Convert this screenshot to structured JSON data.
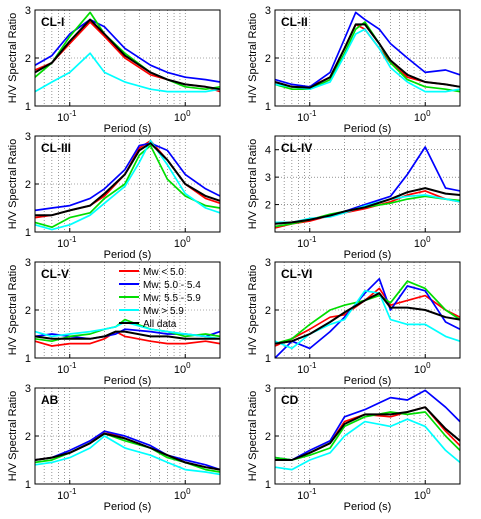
{
  "figure": {
    "series": [
      {
        "name": "Mw < 5.0",
        "color": "#ff0000"
      },
      {
        "name": "Mw: 5.0 - 5.4",
        "color": "#0000ff"
      },
      {
        "name": "Mw: 5.5 - 5.9",
        "color": "#00dd00"
      },
      {
        "name": "Mw > 5.9",
        "color": "#00ffff"
      },
      {
        "name": "All data",
        "color": "#000000"
      }
    ],
    "legend_location": "panel CL-V, top-right"
  },
  "chart_data": [
    {
      "type": "line",
      "title": "CL-I",
      "xlabel": "Period (s)",
      "ylabel": "H/V Spectral Ratio",
      "xscale": "log",
      "xlim": [
        0.05,
        2
      ],
      "ylim": [
        1,
        3
      ],
      "yticks": [
        1,
        2,
        3
      ],
      "xticks": [
        {
          "value": 0.1,
          "label": "10",
          "exp": "-1"
        },
        {
          "value": 1,
          "label": "10",
          "exp": "0"
        }
      ],
      "grid": true,
      "x": [
        0.05,
        0.07,
        0.1,
        0.15,
        0.2,
        0.3,
        0.5,
        0.7,
        1.0,
        1.5,
        2.0
      ],
      "series": [
        {
          "name": "Mw < 5.0",
          "values": [
            1.75,
            1.9,
            2.3,
            2.75,
            2.45,
            2.0,
            1.65,
            1.55,
            1.45,
            1.4,
            1.3
          ]
        },
        {
          "name": "Mw: 5.0 - 5.4",
          "values": [
            1.85,
            2.05,
            2.5,
            2.8,
            2.65,
            2.2,
            1.85,
            1.7,
            1.6,
            1.55,
            1.5
          ]
        },
        {
          "name": "Mw: 5.5 - 5.9",
          "values": [
            1.6,
            1.9,
            2.45,
            2.95,
            2.5,
            2.1,
            1.7,
            1.55,
            1.4,
            1.35,
            1.4
          ]
        },
        {
          "name": "Mw > 5.9",
          "values": [
            1.3,
            1.5,
            1.7,
            2.1,
            1.7,
            1.5,
            1.35,
            1.3,
            1.3,
            1.3,
            1.35
          ]
        },
        {
          "name": "All data",
          "values": [
            1.7,
            1.9,
            2.35,
            2.8,
            2.5,
            2.05,
            1.7,
            1.55,
            1.45,
            1.4,
            1.35
          ]
        }
      ]
    },
    {
      "type": "line",
      "title": "CL-II",
      "xlabel": "Period (s)",
      "ylabel": "H/V Spectral Ratio",
      "xscale": "log",
      "xlim": [
        0.05,
        2
      ],
      "ylim": [
        1,
        3
      ],
      "yticks": [
        1,
        2,
        3
      ],
      "xticks": [
        {
          "value": 0.1,
          "label": "10",
          "exp": "-1"
        },
        {
          "value": 1,
          "label": "10",
          "exp": "0"
        }
      ],
      "grid": true,
      "x": [
        0.05,
        0.07,
        0.1,
        0.15,
        0.2,
        0.25,
        0.3,
        0.4,
        0.5,
        0.7,
        1.0,
        1.5,
        2.0
      ],
      "series": [
        {
          "name": "Mw < 5.0",
          "values": [
            1.5,
            1.4,
            1.4,
            1.6,
            2.2,
            2.7,
            2.6,
            2.2,
            1.9,
            1.6,
            1.5,
            1.45,
            1.4
          ]
        },
        {
          "name": "Mw: 5.0 - 5.4",
          "values": [
            1.55,
            1.45,
            1.4,
            1.7,
            2.4,
            2.95,
            2.8,
            2.6,
            2.3,
            2.0,
            1.7,
            1.75,
            1.65
          ]
        },
        {
          "name": "Mw: 5.5 - 5.9",
          "values": [
            1.45,
            1.35,
            1.35,
            1.55,
            2.1,
            2.6,
            2.75,
            2.3,
            1.9,
            1.55,
            1.4,
            1.35,
            1.3
          ]
        },
        {
          "name": "Mw > 5.9",
          "values": [
            1.45,
            1.4,
            1.35,
            1.5,
            2.05,
            2.5,
            2.6,
            2.2,
            1.8,
            1.5,
            1.3,
            1.3,
            1.35
          ]
        },
        {
          "name": "All data",
          "values": [
            1.5,
            1.4,
            1.38,
            1.6,
            2.2,
            2.7,
            2.7,
            2.3,
            1.95,
            1.65,
            1.5,
            1.45,
            1.4
          ]
        }
      ]
    },
    {
      "type": "line",
      "title": "CL-III",
      "xlabel": "Period (s)",
      "ylabel": "H/V Spectral Ratio",
      "xscale": "log",
      "xlim": [
        0.05,
        2
      ],
      "ylim": [
        1,
        3
      ],
      "yticks": [
        1,
        2,
        3
      ],
      "xticks": [
        {
          "value": 0.1,
          "label": "10",
          "exp": "-1"
        },
        {
          "value": 1,
          "label": "10",
          "exp": "0"
        }
      ],
      "grid": true,
      "x": [
        0.05,
        0.07,
        0.1,
        0.15,
        0.2,
        0.3,
        0.4,
        0.5,
        0.7,
        1.0,
        1.5,
        2.0
      ],
      "series": [
        {
          "name": "Mw < 5.0",
          "values": [
            1.3,
            1.35,
            1.45,
            1.55,
            1.75,
            2.2,
            2.75,
            2.9,
            2.5,
            2.0,
            1.7,
            1.6
          ]
        },
        {
          "name": "Mw: 5.0 - 5.4",
          "values": [
            1.45,
            1.5,
            1.55,
            1.7,
            1.9,
            2.3,
            2.8,
            2.85,
            2.7,
            2.2,
            1.9,
            1.75
          ]
        },
        {
          "name": "Mw: 5.5 - 5.9",
          "values": [
            1.2,
            1.1,
            1.3,
            1.4,
            1.7,
            2.0,
            2.6,
            2.8,
            2.1,
            1.75,
            1.55,
            1.5
          ]
        },
        {
          "name": "Mw > 5.9",
          "values": [
            1.15,
            1.05,
            1.15,
            1.35,
            1.6,
            1.95,
            2.45,
            2.9,
            2.4,
            1.8,
            1.5,
            1.4
          ]
        },
        {
          "name": "All data",
          "values": [
            1.35,
            1.35,
            1.45,
            1.55,
            1.8,
            2.2,
            2.7,
            2.85,
            2.5,
            2.0,
            1.75,
            1.65
          ]
        }
      ]
    },
    {
      "type": "line",
      "title": "CL-IV",
      "xlabel": "Period (s)",
      "ylabel": "H/V Spectral Ratio",
      "xscale": "log",
      "xlim": [
        0.05,
        2
      ],
      "ylim": [
        1,
        4.5
      ],
      "yticks": [
        2,
        3,
        4
      ],
      "xticks": [
        {
          "value": 0.1,
          "label": "10",
          "exp": "-1"
        },
        {
          "value": 1,
          "label": "10",
          "exp": "0"
        }
      ],
      "grid": true,
      "x": [
        0.05,
        0.07,
        0.1,
        0.15,
        0.2,
        0.3,
        0.5,
        0.7,
        1.0,
        1.5,
        2.0
      ],
      "series": [
        {
          "name": "Mw < 5.0",
          "values": [
            1.15,
            1.3,
            1.4,
            1.6,
            1.7,
            1.85,
            2.1,
            2.35,
            2.5,
            2.2,
            2.1
          ]
        },
        {
          "name": "Mw: 5.0 - 5.4",
          "values": [
            1.3,
            1.35,
            1.45,
            1.6,
            1.75,
            2.0,
            2.3,
            3.1,
            4.1,
            2.6,
            2.5
          ]
        },
        {
          "name": "Mw: 5.5 - 5.9",
          "values": [
            1.2,
            1.3,
            1.45,
            1.65,
            1.75,
            1.9,
            2.05,
            2.2,
            2.3,
            2.2,
            2.15
          ]
        },
        {
          "name": "Mw > 5.9",
          "values": [
            1.35,
            1.35,
            1.5,
            1.55,
            1.7,
            1.95,
            2.2,
            2.3,
            2.35,
            2.2,
            2.1
          ]
        },
        {
          "name": "All data",
          "values": [
            1.3,
            1.35,
            1.45,
            1.6,
            1.75,
            1.9,
            2.2,
            2.45,
            2.6,
            2.4,
            2.35
          ]
        }
      ]
    },
    {
      "type": "line",
      "title": "CL-V",
      "xlabel": "Period (s)",
      "ylabel": "H/V Spectral Ratio",
      "xscale": "log",
      "xlim": [
        0.05,
        2
      ],
      "ylim": [
        1,
        3
      ],
      "yticks": [
        1,
        2,
        3
      ],
      "xticks": [
        {
          "value": 0.1,
          "label": "10",
          "exp": "-1"
        },
        {
          "value": 1,
          "label": "10",
          "exp": "0"
        }
      ],
      "grid": true,
      "x": [
        0.05,
        0.07,
        0.1,
        0.15,
        0.2,
        0.25,
        0.3,
        0.5,
        0.7,
        1.0,
        1.5,
        2.0
      ],
      "series": [
        {
          "name": "Mw < 5.0",
          "values": [
            1.35,
            1.25,
            1.3,
            1.3,
            1.4,
            1.55,
            1.45,
            1.35,
            1.3,
            1.3,
            1.35,
            1.3
          ]
        },
        {
          "name": "Mw: 5.0 - 5.4",
          "values": [
            1.45,
            1.5,
            1.45,
            1.4,
            1.45,
            1.5,
            1.6,
            1.55,
            1.5,
            1.5,
            1.45,
            1.55
          ]
        },
        {
          "name": "Mw: 5.5 - 5.9",
          "values": [
            1.4,
            1.35,
            1.45,
            1.5,
            1.6,
            1.65,
            1.8,
            1.6,
            1.55,
            1.45,
            1.5,
            1.45
          ]
        },
        {
          "name": "Mw > 5.9",
          "values": [
            1.55,
            1.45,
            1.5,
            1.55,
            1.6,
            1.65,
            1.75,
            1.6,
            1.55,
            1.5,
            1.45,
            1.4
          ]
        },
        {
          "name": "All data",
          "values": [
            1.45,
            1.4,
            1.4,
            1.4,
            1.45,
            1.55,
            1.55,
            1.45,
            1.45,
            1.4,
            1.4,
            1.4
          ]
        }
      ]
    },
    {
      "type": "line",
      "title": "CL-VI",
      "xlabel": "Period (s)",
      "ylabel": "H/V Spectral Ratio",
      "xscale": "log",
      "xlim": [
        0.05,
        2
      ],
      "ylim": [
        1,
        3
      ],
      "yticks": [
        1,
        2,
        3
      ],
      "xticks": [
        {
          "value": 0.1,
          "label": "10",
          "exp": "-1"
        },
        {
          "value": 1,
          "label": "10",
          "exp": "0"
        }
      ],
      "grid": true,
      "x": [
        0.05,
        0.07,
        0.1,
        0.15,
        0.2,
        0.3,
        0.4,
        0.5,
        0.7,
        1.0,
        1.5,
        2.0
      ],
      "series": [
        {
          "name": "Mw < 5.0",
          "values": [
            1.25,
            1.4,
            1.6,
            1.85,
            1.9,
            2.2,
            2.45,
            2.1,
            2.2,
            2.3,
            2.0,
            1.85
          ]
        },
        {
          "name": "Mw: 5.0 - 5.4",
          "values": [
            1.0,
            1.35,
            1.2,
            1.55,
            1.85,
            2.35,
            2.65,
            2.0,
            2.5,
            2.4,
            1.75,
            1.6
          ]
        },
        {
          "name": "Mw: 5.5 - 5.9",
          "values": [
            1.3,
            1.4,
            1.7,
            2.0,
            2.1,
            2.2,
            2.3,
            2.15,
            2.6,
            2.45,
            2.0,
            1.8
          ]
        },
        {
          "name": "Mw > 5.9",
          "values": [
            1.35,
            1.2,
            1.5,
            1.7,
            1.8,
            2.4,
            2.35,
            1.8,
            1.7,
            1.7,
            1.45,
            1.35
          ]
        },
        {
          "name": "All data",
          "values": [
            1.3,
            1.35,
            1.5,
            1.75,
            1.95,
            2.2,
            2.35,
            2.05,
            2.05,
            2.0,
            1.85,
            1.8
          ]
        }
      ]
    },
    {
      "type": "line",
      "title": "AB",
      "xlabel": "Period (s)",
      "ylabel": "H/V Spectral Ratio",
      "xscale": "log",
      "xlim": [
        0.05,
        2
      ],
      "ylim": [
        1,
        3
      ],
      "yticks": [
        1,
        2,
        3
      ],
      "xticks": [
        {
          "value": 0.1,
          "label": "10",
          "exp": "-1"
        },
        {
          "value": 1,
          "label": "10",
          "exp": "0"
        }
      ],
      "grid": true,
      "x": [
        0.05,
        0.07,
        0.1,
        0.15,
        0.2,
        0.3,
        0.5,
        0.7,
        1.0,
        1.5,
        2.0
      ],
      "series": [
        {
          "name": "Mw < 5.0",
          "values": [
            1.5,
            1.55,
            1.65,
            1.85,
            2.1,
            1.95,
            1.75,
            1.6,
            1.45,
            1.35,
            1.3
          ]
        },
        {
          "name": "Mw: 5.0 - 5.4",
          "values": [
            1.5,
            1.55,
            1.7,
            1.9,
            2.1,
            2.0,
            1.8,
            1.6,
            1.5,
            1.4,
            1.3
          ]
        },
        {
          "name": "Mw: 5.5 - 5.9",
          "values": [
            1.45,
            1.5,
            1.65,
            1.85,
            2.05,
            1.9,
            1.75,
            1.55,
            1.45,
            1.3,
            1.25
          ]
        },
        {
          "name": "Mw > 5.9",
          "values": [
            1.4,
            1.45,
            1.55,
            1.75,
            2.0,
            1.75,
            1.6,
            1.45,
            1.3,
            1.25,
            1.2
          ]
        },
        {
          "name": "All data",
          "values": [
            1.5,
            1.55,
            1.65,
            1.85,
            2.05,
            1.95,
            1.75,
            1.6,
            1.45,
            1.35,
            1.3
          ]
        }
      ]
    },
    {
      "type": "line",
      "title": "CD",
      "xlabel": "Period (s)",
      "ylabel": "H/V Spectral Ratio",
      "xscale": "log",
      "xlim": [
        0.05,
        2
      ],
      "ylim": [
        1,
        3
      ],
      "yticks": [
        1,
        2,
        3
      ],
      "xticks": [
        {
          "value": 0.1,
          "label": "10",
          "exp": "-1"
        },
        {
          "value": 1,
          "label": "10",
          "exp": "0"
        }
      ],
      "grid": true,
      "x": [
        0.05,
        0.07,
        0.1,
        0.15,
        0.2,
        0.3,
        0.5,
        0.7,
        1.0,
        1.5,
        2.0
      ],
      "series": [
        {
          "name": "Mw < 5.0",
          "values": [
            1.5,
            1.5,
            1.65,
            1.85,
            2.3,
            2.45,
            2.4,
            2.5,
            2.6,
            2.1,
            1.8
          ]
        },
        {
          "name": "Mw: 5.0 - 5.4",
          "values": [
            1.55,
            1.5,
            1.7,
            1.9,
            2.4,
            2.55,
            2.8,
            2.75,
            2.95,
            2.6,
            2.3
          ]
        },
        {
          "name": "Mw: 5.5 - 5.9",
          "values": [
            1.55,
            1.5,
            1.6,
            1.75,
            2.2,
            2.4,
            2.5,
            2.45,
            2.5,
            2.0,
            1.7
          ]
        },
        {
          "name": "Mw > 5.9",
          "values": [
            1.35,
            1.3,
            1.5,
            1.65,
            2.0,
            2.3,
            2.2,
            2.35,
            2.2,
            1.7,
            1.45
          ]
        },
        {
          "name": "All data",
          "values": [
            1.5,
            1.5,
            1.65,
            1.85,
            2.25,
            2.45,
            2.45,
            2.5,
            2.6,
            2.15,
            1.9
          ]
        }
      ]
    }
  ]
}
